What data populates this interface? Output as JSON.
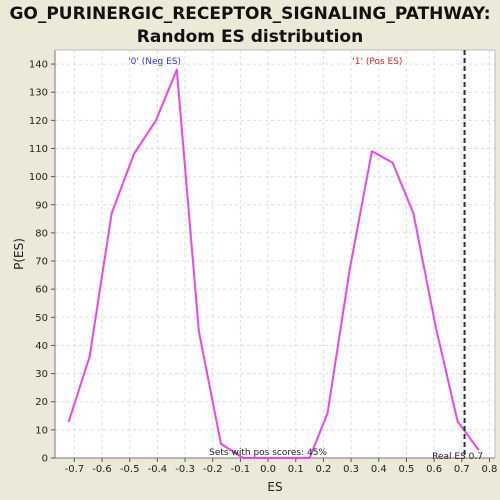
{
  "title": {
    "line1": "GO_PURINERGIC_RECEPTOR_SIGNALING_PATHWAY:",
    "line2": "Random ES distribution"
  },
  "colors": {
    "page_background": "#ece9d8",
    "plot_background": "#ffffff",
    "grid": "#dddddd",
    "series_line": "#ee44ee",
    "neg_label": "#3333cc",
    "pos_label": "#dd2222",
    "real_es_line": "#333333"
  },
  "chart_data": {
    "type": "line",
    "xlabel": "ES",
    "ylabel": "P(ES)",
    "xlim": [
      -0.77,
      0.82
    ],
    "ylim": [
      0,
      145
    ],
    "x_ticks": [
      "-0.7",
      "-0.6",
      "-0.5",
      "-0.4",
      "-0.3",
      "-0.2",
      "-0.1",
      "0.0",
      "0.1",
      "0.2",
      "0.3",
      "0.4",
      "0.5",
      "0.6",
      "0.7",
      "0.8"
    ],
    "y_ticks": [
      "0",
      "10",
      "20",
      "30",
      "40",
      "50",
      "60",
      "70",
      "80",
      "90",
      "100",
      "110",
      "120",
      "130",
      "140"
    ],
    "grid": true,
    "x": [
      -0.72,
      -0.645,
      -0.565,
      -0.485,
      -0.405,
      -0.33,
      -0.25,
      -0.17,
      -0.09,
      -0.01,
      0.07,
      0.15,
      0.215,
      0.295,
      0.375,
      0.45,
      0.525,
      0.605,
      0.685,
      0.76
    ],
    "values": [
      13,
      36,
      87,
      108,
      120,
      138,
      45,
      5,
      0,
      0,
      0,
      0,
      16,
      67,
      109,
      105,
      87,
      47,
      13,
      3
    ],
    "real_es": 0.71,
    "annotations": {
      "neg_label": "'0' (Neg ES)",
      "pos_label": "'1' (Pos ES)",
      "sets_text": "Sets with pos scores: 45%",
      "real_es_text": "Real ES 0.7"
    }
  }
}
